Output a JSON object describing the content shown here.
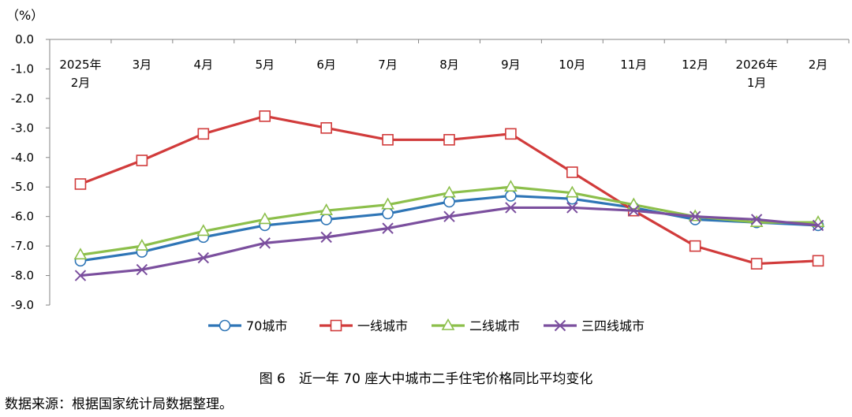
{
  "chart_data": {
    "type": "line",
    "unit_label": "（%）",
    "categories": [
      [
        "2025年",
        "2月"
      ],
      [
        "3月"
      ],
      [
        "4月"
      ],
      [
        "5月"
      ],
      [
        "6月"
      ],
      [
        "7月"
      ],
      [
        "8月"
      ],
      [
        "9月"
      ],
      [
        "10月"
      ],
      [
        "11月"
      ],
      [
        "12月"
      ],
      [
        "2026年",
        "1月"
      ],
      [
        "2月"
      ]
    ],
    "y_ticks": [
      "0.0",
      "-1.0",
      "-2.0",
      "-3.0",
      "-4.0",
      "-5.0",
      "-6.0",
      "-7.0",
      "-8.0",
      "-9.0"
    ],
    "ylim": [
      -9,
      0
    ],
    "grid": false,
    "legend_position": "bottom",
    "series": [
      {
        "name": "70城市",
        "marker": "circle",
        "color": "#2E75B6",
        "values": [
          -7.5,
          -7.2,
          -6.7,
          -6.3,
          -6.1,
          -5.9,
          -5.5,
          -5.3,
          -5.4,
          -5.7,
          -6.1,
          -6.2,
          -6.3
        ]
      },
      {
        "name": "一线城市",
        "marker": "square",
        "color": "#D13B3B",
        "values": [
          -4.9,
          -4.1,
          -3.2,
          -2.6,
          -3.0,
          -3.4,
          -3.4,
          -3.2,
          -4.5,
          -5.8,
          -7.0,
          -7.6,
          -7.5
        ]
      },
      {
        "name": "二线城市",
        "marker": "triangle",
        "color": "#8CBF4B",
        "values": [
          -7.3,
          -7.0,
          -6.5,
          -6.1,
          -5.8,
          -5.6,
          -5.2,
          -5.0,
          -5.2,
          -5.6,
          -6.0,
          -6.2,
          -6.2
        ]
      },
      {
        "name": "三四线城市",
        "marker": "x",
        "color": "#7B4F9E",
        "values": [
          -8.0,
          -7.8,
          -7.4,
          -6.9,
          -6.7,
          -6.4,
          -6.0,
          -5.7,
          -5.7,
          -5.8,
          -6.0,
          -6.1,
          -6.3
        ]
      }
    ]
  },
  "caption": "图 6　近一年 70 座大中城市二手住宅价格同比平均变化",
  "source": "数据来源：根据国家统计局数据整理。"
}
